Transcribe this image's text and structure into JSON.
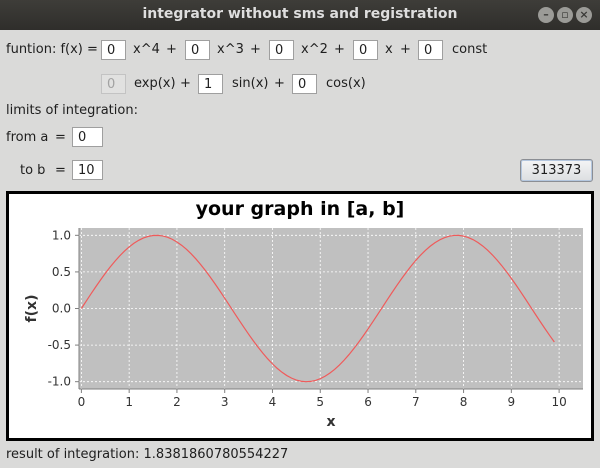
{
  "window": {
    "title": "integrator without sms and registration",
    "controls": [
      "minimize-icon",
      "maximize-icon",
      "close-icon"
    ]
  },
  "function": {
    "label": "funtion: f(x) =",
    "coef_x4": "0",
    "term_x4": "x^4",
    "coef_x3": "0",
    "term_x3": "x^3",
    "coef_x2": "0",
    "term_x2": "x^2",
    "coef_x": "0",
    "term_x": "x",
    "const": "0",
    "term_const": "const",
    "plus": "+",
    "coef_exp": "0",
    "term_exp": "exp(x)",
    "coef_sin": "1",
    "term_sin": "sin(x)",
    "coef_cos": "0",
    "term_cos": "cos(x)"
  },
  "limits": {
    "heading": "limits of integration:",
    "from_label": "from a",
    "to_label": "to b",
    "eq": "=",
    "a": "0",
    "b": "10"
  },
  "calc_button": "313373",
  "result": {
    "label": "result of integration:",
    "value": "1.8381860780554227"
  },
  "chart_data": {
    "type": "line",
    "title": "your graph in [a, b]",
    "xlabel": "x",
    "ylabel": "f(x)",
    "function": "sin(x)",
    "x_start": 0,
    "x_end": 9.9,
    "x_step": 0.1,
    "xlim": [
      -0.05,
      10.5
    ],
    "ylim": [
      -1.1,
      1.1
    ],
    "xticks": [
      "0",
      "1",
      "2",
      "3",
      "4",
      "5",
      "6",
      "7",
      "8",
      "9",
      "10"
    ],
    "yticks": [
      "1.0",
      "0.5",
      "0.0",
      "-0.5",
      "-1.0"
    ],
    "grid": true,
    "plot_background": "#c0c0c0",
    "line_color": "#ef5b5b",
    "grid_color": "#ffffff"
  }
}
